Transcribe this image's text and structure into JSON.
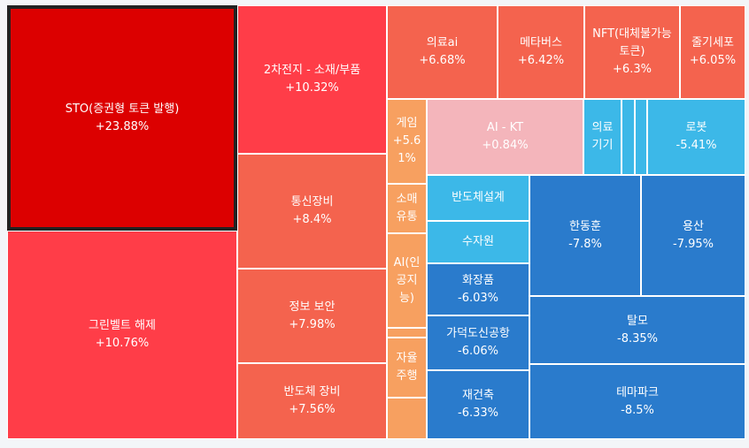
{
  "chart_data": {
    "type": "treemap",
    "colors": {
      "strong_up": "#dc0000",
      "up": "#ff3d48",
      "mid_up": "#f4634e",
      "mild_up": "#f7a060",
      "flat": "#f4b5bb",
      "mild_down": "#3cb8e8",
      "down": "#2a7bcc",
      "border": "#ffffff",
      "selected_border": "#222222",
      "background": "#f3f5f8"
    },
    "items": [
      {
        "name": "STO(증권형 토큰 발행)",
        "label": "STO(증권형 토큰 발행)",
        "value": "+23.88%",
        "change": 23.88,
        "color": "strong_up",
        "selected": true
      },
      {
        "name": "그린벨트 해제",
        "label": "그린벨트 해제",
        "value": "+10.76%",
        "change": 10.76,
        "color": "up"
      },
      {
        "name": "2차전지 - 소재/부품",
        "label": "2차전지 - 소재/부품",
        "value": "+10.32%",
        "change": 10.32,
        "color": "up"
      },
      {
        "name": "통신장비",
        "label": "통신장비",
        "value": "+8.4%",
        "change": 8.4,
        "color": "mid_up"
      },
      {
        "name": "정보 보안",
        "label": "정보 보안",
        "value": "+7.98%",
        "change": 7.98,
        "color": "mid_up"
      },
      {
        "name": "반도체 장비",
        "label": "반도체 장비",
        "value": "+7.56%",
        "change": 7.56,
        "color": "mid_up"
      },
      {
        "name": "의료ai",
        "label": "의료ai",
        "value": "+6.68%",
        "change": 6.68,
        "color": "mid_up"
      },
      {
        "name": "메타버스",
        "label": "메타버스",
        "value": "+6.42%",
        "change": 6.42,
        "color": "mid_up"
      },
      {
        "name": "NFT(대체불가능 토큰)",
        "label": "NFT(대체불가능\n토큰)",
        "value": "+6.3%",
        "change": 6.3,
        "color": "mid_up"
      },
      {
        "name": "줄기세포",
        "label": "줄기세포",
        "value": "+6.05%",
        "change": 6.05,
        "color": "mid_up"
      },
      {
        "name": "게임",
        "label": "게임\n+5.6\n1%",
        "value": "",
        "change": 5.61,
        "color": "mild_up"
      },
      {
        "name": "소매유통",
        "label": "소매\n유통",
        "value": "",
        "change": null,
        "color": "mild_up"
      },
      {
        "name": "AI(인공지능)",
        "label": "AI(인\n공지\n능)",
        "value": "",
        "change": null,
        "color": "mild_up"
      },
      {
        "name": "small-up-1",
        "label": "",
        "value": "",
        "change": null,
        "color": "mild_up"
      },
      {
        "name": "자율주행",
        "label": "자율\n주행",
        "value": "",
        "change": null,
        "color": "mild_up"
      },
      {
        "name": "small-up-2",
        "label": "",
        "value": "",
        "change": null,
        "color": "mild_up"
      },
      {
        "name": "AI - KT",
        "label": "AI - KT",
        "value": "+0.84%",
        "change": 0.84,
        "color": "flat"
      },
      {
        "name": "의료기기",
        "label": "의료\n기기",
        "value": "",
        "change": null,
        "color": "mild_down"
      },
      {
        "name": "small-down-1",
        "label": "",
        "value": "",
        "change": null,
        "color": "mild_down"
      },
      {
        "name": "small-down-2",
        "label": "",
        "value": "",
        "change": null,
        "color": "mild_down"
      },
      {
        "name": "로봇",
        "label": "로봇",
        "value": "-5.41%",
        "change": -5.41,
        "color": "mild_down"
      },
      {
        "name": "반도체설계",
        "label": "반도체설계",
        "value": "",
        "change": null,
        "color": "mild_down"
      },
      {
        "name": "수자원",
        "label": "수자원",
        "value": "",
        "change": null,
        "color": "mild_down"
      },
      {
        "name": "화장품",
        "label": "화장품",
        "value": "-6.03%",
        "change": -6.03,
        "color": "down"
      },
      {
        "name": "가덕도신공항",
        "label": "가덕도신공항",
        "value": "-6.06%",
        "change": -6.06,
        "color": "down"
      },
      {
        "name": "재건축",
        "label": "재건축",
        "value": "-6.33%",
        "change": -6.33,
        "color": "down"
      },
      {
        "name": "한동훈",
        "label": "한동훈",
        "value": "-7.8%",
        "change": -7.8,
        "color": "down"
      },
      {
        "name": "용산",
        "label": "용산",
        "value": "-7.95%",
        "change": -7.95,
        "color": "down"
      },
      {
        "name": "탈모",
        "label": "탈모",
        "value": "-8.35%",
        "change": -8.35,
        "color": "down"
      },
      {
        "name": "테마파크",
        "label": "테마파크",
        "value": "-8.5%",
        "change": -8.5,
        "color": "down"
      }
    ]
  }
}
